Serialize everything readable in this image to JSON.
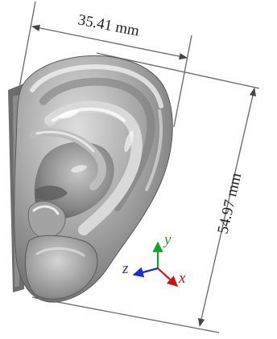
{
  "dimensions": {
    "width_label": "35.41 mm",
    "height_label": "54.97 mm"
  },
  "axes": {
    "x": {
      "label": "x",
      "color": "#cc1111"
    },
    "y": {
      "label": "y",
      "color": "#17a02b"
    },
    "z": {
      "label": "z",
      "color": "#1a2bd0"
    }
  },
  "colors": {
    "dimension_line": "#555555",
    "ear_body": "#9c9c9c"
  }
}
